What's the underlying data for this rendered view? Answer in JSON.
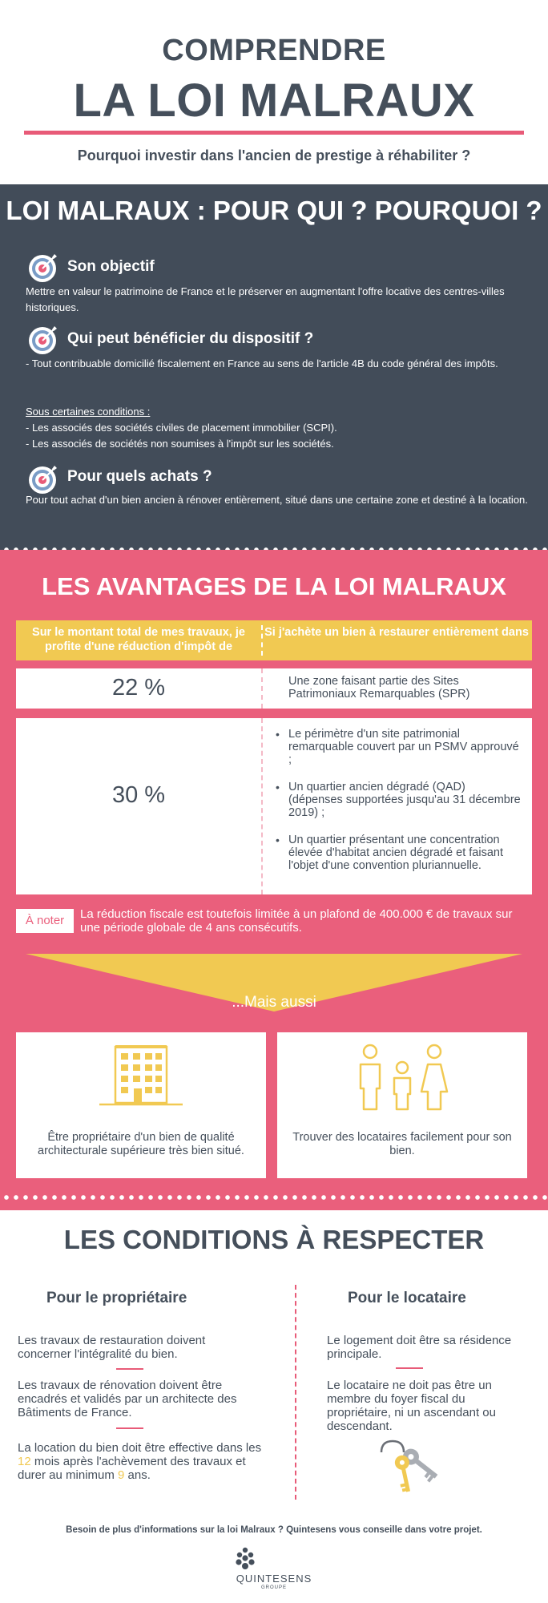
{
  "header": {
    "title_line1": "COMPRENDRE",
    "title_line2": "LA LOI MALRAUX",
    "subtitle": "Pourquoi investir dans l'ancien de prestige à réhabiliter ?"
  },
  "qui": {
    "title": "LOI MALRAUX : POUR QUI ? POURQUOI ?",
    "objectif_title": "Son objectif",
    "objectif_text": "Mettre en valeur le patrimoine de France et le préserver en augmentant l'offre locative des centres-villes historiques.",
    "beneficier_title": "Qui peut bénéficier du dispositif ?",
    "beneficier_text": "- Tout contribuable domicilié fiscalement en France au sens de l'article 4B du code général des impôts.",
    "conditions_label": "Sous certaines conditions :",
    "conditions_items": [
      "- Les associés des sociétés civiles de placement immobilier (SCPI).",
      "- Les associés de sociétés non soumises à l'impôt sur les sociétés."
    ],
    "achats_title": "Pour quels achats ?",
    "achats_text": "Pour tout achat d'un bien ancien à rénover entièrement, situé dans une certaine zone et destiné à la location."
  },
  "avantages": {
    "title": "LES AVANTAGES DE LA LOI MALRAUX",
    "col_left": "Sur le montant total de mes travaux, je profite d'une réduction d'impôt de",
    "col_right": "Si j'achète un bien à restaurer entièrement dans",
    "row1_pct": "22 %",
    "row1_text": "Une zone faisant partie des Sites Patrimoniaux Remarquables (SPR)",
    "row2_pct": "30 %",
    "row2_items": [
      "Le périmètre d'un site patrimonial remarquable couvert par un PSMV approuvé ;",
      "Un quartier ancien dégradé (QAD) (dépenses supportées jusqu'au 31 décembre 2019) ;",
      "Un quartier présentant une concentration élevée d'habitat ancien dégradé et faisant l'objet d'une convention pluriannuelle."
    ],
    "note_badge": "À noter",
    "note_text": "La réduction fiscale est toutefois limitée à un plafond de 400.000 € de travaux sur une période globale de 4 ans consécutifs.",
    "mais_aussi": "...Mais aussi",
    "card1_text": "Être propriétaire d'un bien de qualité architecturale supérieure très bien situé.",
    "card2_text": "Trouver des locataires facilement pour son bien."
  },
  "conditions": {
    "title": "LES CONDITIONS À RESPECTER",
    "proprietaire_title": "Pour le propriétaire",
    "proprietaire_p1": "Les travaux de restauration doivent concerner l'intégralité du bien.",
    "proprietaire_p2": "Les travaux de rénovation doivent être encadrés et validés par un architecte des Bâtiments de France.",
    "proprietaire_p3_a": "La location du bien doit être effective dans les ",
    "proprietaire_p3_num1": "12",
    "proprietaire_p3_b": " mois après l'achèvement des travaux et durer au minimum ",
    "proprietaire_p3_num2": "9",
    "proprietaire_p3_c": " ans.",
    "locataire_title": "Pour le locataire",
    "locataire_p1": "Le logement doit être sa résidence principale.",
    "locataire_p2": "Le locataire ne doit pas être un membre du foyer fiscal du propriétaire, ni un ascendant ou descendant."
  },
  "footer": {
    "text": "Besoin de plus d'informations sur la loi Malraux ? Quintesens vous conseille dans votre projet.",
    "logo_name": "QUINTESENS",
    "logo_sub": "GROUPE"
  },
  "colors": {
    "pink": "#ea5f7c",
    "dark": "#424c59",
    "yellow": "#f1c952",
    "text": "#454f5b"
  },
  "icons": [
    "target-icon",
    "building-icon",
    "family-icon",
    "keys-icon",
    "quintesens-logo-icon"
  ]
}
